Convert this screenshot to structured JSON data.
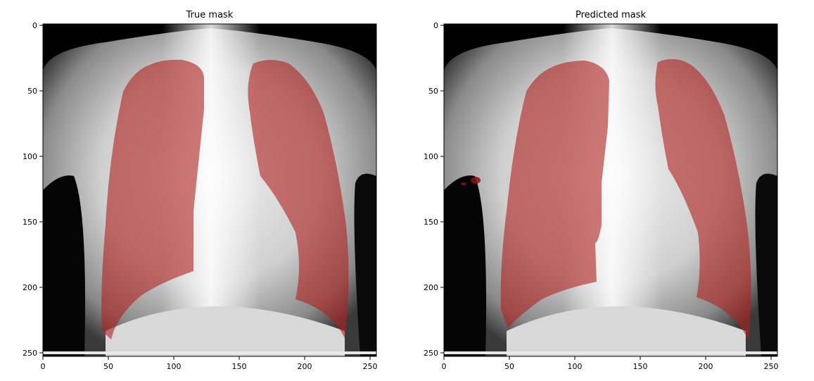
{
  "panels": [
    {
      "title": "True mask",
      "xticks": [
        "0",
        "50",
        "100",
        "150",
        "200",
        "250"
      ],
      "yticks": [
        "0",
        "50",
        "100",
        "150",
        "200",
        "250"
      ]
    },
    {
      "title": "Predicted mask",
      "xticks": [
        "0",
        "50",
        "100",
        "150",
        "200",
        "250"
      ],
      "yticks": [
        "0",
        "50",
        "100",
        "150",
        "200",
        "250"
      ]
    }
  ],
  "colors": {
    "mask": "#b02020",
    "axes_frame": "#000000",
    "background": "#ffffff"
  }
}
